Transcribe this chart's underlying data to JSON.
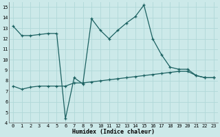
{
  "xlabel": "Humidex (Indice chaleur)",
  "bg_color": "#cce9e9",
  "line_color": "#1a6060",
  "grid_color": "#b0d8d8",
  "xlim": [
    -0.5,
    23.5
  ],
  "ylim": [
    4,
    15.5
  ],
  "yticks": [
    4,
    5,
    6,
    7,
    8,
    9,
    10,
    11,
    12,
    13,
    14,
    15
  ],
  "xticks": [
    0,
    1,
    2,
    3,
    4,
    5,
    6,
    7,
    8,
    9,
    10,
    11,
    12,
    13,
    14,
    15,
    16,
    17,
    18,
    19,
    20,
    21,
    22,
    23
  ],
  "line1_x": [
    0,
    1,
    2,
    3,
    4,
    5,
    6,
    7,
    8,
    9,
    10,
    11,
    12,
    13,
    14,
    15,
    16,
    17,
    18,
    19,
    20,
    21,
    22,
    23
  ],
  "line1_y": [
    13.2,
    12.3,
    12.3,
    12.4,
    12.5,
    12.5,
    4.4,
    8.3,
    7.7,
    13.9,
    12.8,
    12.0,
    12.8,
    13.5,
    14.1,
    15.2,
    12.0,
    10.5,
    9.3,
    9.1,
    9.1,
    8.5,
    8.3,
    8.3
  ],
  "line2_x": [
    0,
    1,
    2,
    3,
    4,
    5,
    6,
    7,
    8,
    9,
    10,
    11,
    12,
    13,
    14,
    15,
    16,
    17,
    18,
    19,
    20,
    21,
    22,
    23
  ],
  "line2_y": [
    7.5,
    7.2,
    7.4,
    7.5,
    7.5,
    7.5,
    7.5,
    7.8,
    7.8,
    7.9,
    8.0,
    8.1,
    8.2,
    8.3,
    8.4,
    8.5,
    8.6,
    8.7,
    8.8,
    8.9,
    8.9,
    8.5,
    8.3,
    8.3
  ],
  "tick_fontsize": 5.0,
  "xlabel_fontsize": 6.0,
  "marker_size": 3.0,
  "linewidth": 0.9
}
